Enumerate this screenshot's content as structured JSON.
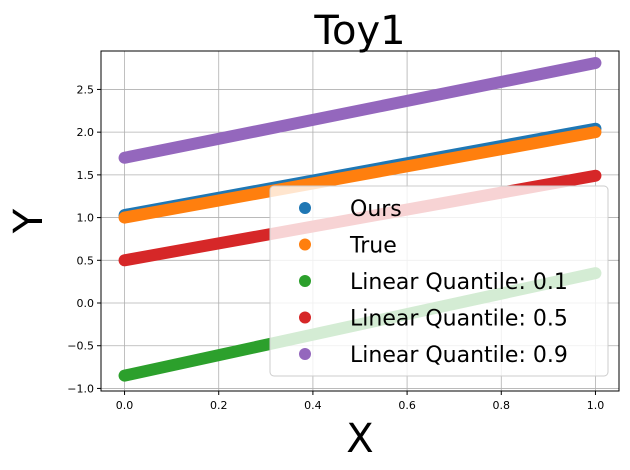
{
  "chart_data": {
    "type": "scatter",
    "title": "Toy1",
    "xlabel": "X",
    "ylabel": "Y",
    "xlim": [
      -0.05,
      1.05
    ],
    "ylim": [
      -1.03,
      2.95
    ],
    "xticks": [
      0.0,
      0.2,
      0.4,
      0.6,
      0.8,
      1.0
    ],
    "xtick_labels": [
      "0.0",
      "0.2",
      "0.4",
      "0.6",
      "0.8",
      "1.0"
    ],
    "yticks": [
      -1.0,
      -0.5,
      0.0,
      0.5,
      1.0,
      1.5,
      2.0,
      2.5
    ],
    "ytick_labels": [
      "−1.0",
      "−0.5",
      "0.0",
      "0.5",
      "1.0",
      "1.5",
      "2.0",
      "2.5"
    ],
    "grid": true,
    "legend_position": "lower-right",
    "series": [
      {
        "name": "Ours",
        "color": "#1f77b4",
        "x": [
          0.0,
          1.0
        ],
        "y": [
          1.03,
          2.04
        ]
      },
      {
        "name": "True",
        "color": "#ff7f0e",
        "x": [
          0.0,
          1.0
        ],
        "y": [
          1.0,
          2.0
        ]
      },
      {
        "name": "Linear Quantile: 0.1",
        "color": "#2ca02c",
        "x": [
          0.0,
          1.0
        ],
        "y": [
          -0.85,
          0.35
        ]
      },
      {
        "name": "Linear Quantile: 0.5",
        "color": "#d62728",
        "x": [
          0.0,
          1.0
        ],
        "y": [
          0.5,
          1.49
        ]
      },
      {
        "name": "Linear Quantile: 0.9",
        "color": "#9467bd",
        "x": [
          0.0,
          1.0
        ],
        "y": [
          1.7,
          2.81
        ]
      }
    ]
  }
}
